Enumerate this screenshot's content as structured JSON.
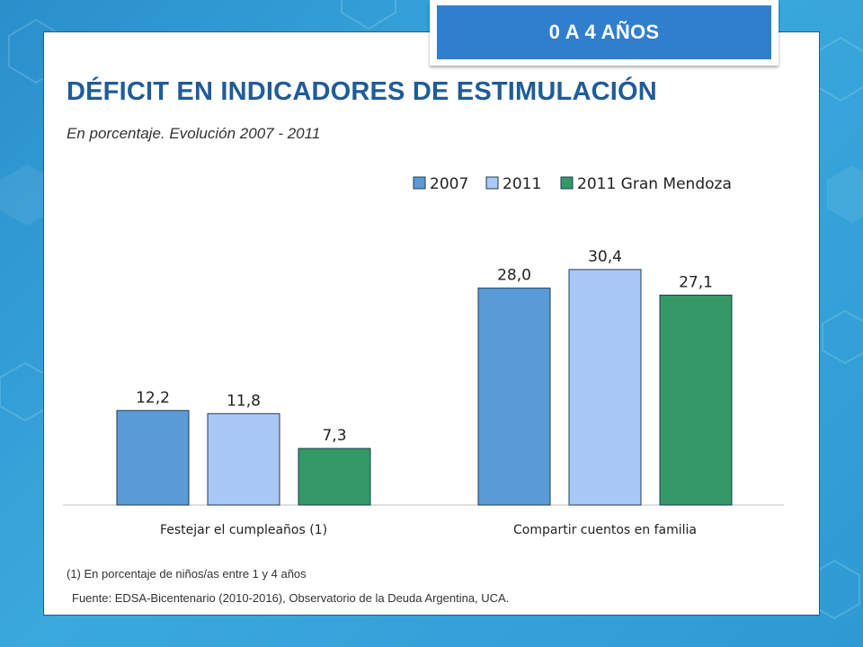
{
  "tab": {
    "label": "0 A 4 AÑOS"
  },
  "header": {
    "title": "DÉFICIT EN INDICADORES DE ESTIMULACIÓN",
    "subtitle": "En porcentaje. Evolución 2007 - 2011"
  },
  "chart_data": {
    "type": "bar",
    "categories": [
      "Festejar el cumpleaños (1)",
      "Compartir cuentos en familia"
    ],
    "series": [
      {
        "name": "2007",
        "color": "#5b9bd5",
        "values": [
          12.2,
          28.0
        ],
        "labels": [
          "12,2",
          "28,0"
        ]
      },
      {
        "name": "2011",
        "color": "#a9c8f5",
        "values": [
          11.8,
          30.4
        ],
        "labels": [
          "11,8",
          "30,4"
        ]
      },
      {
        "name": "2011 Gran Mendoza",
        "color": "#339966",
        "values": [
          7.3,
          27.1
        ],
        "labels": [
          "7,3",
          "27,1"
        ]
      }
    ],
    "ylim": [
      0,
      40
    ],
    "legend": "top-right",
    "grid": false,
    "data_labels": true
  },
  "notes": {
    "footnote": "(1) En porcentaje de niños/as entre 1 y 4 años",
    "source": "Fuente: EDSA-Bicentenario (2010-2016), Observatorio de la Deuda Argentina, UCA."
  }
}
